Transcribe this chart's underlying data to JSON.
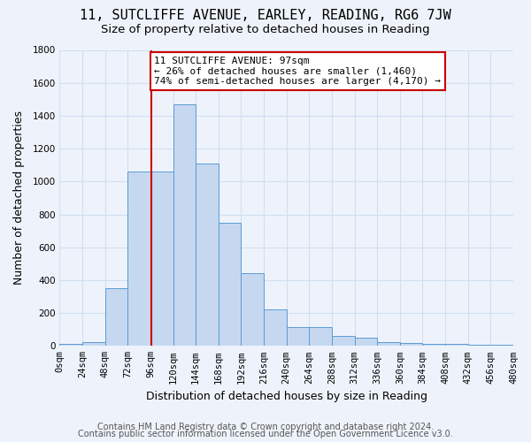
{
  "title1": "11, SUTCLIFFE AVENUE, EARLEY, READING, RG6 7JW",
  "title2": "Size of property relative to detached houses in Reading",
  "xlabel": "Distribution of detached houses by size in Reading",
  "ylabel": "Number of detached properties",
  "bins": [
    0,
    24,
    48,
    72,
    96,
    120,
    144,
    168,
    192,
    216,
    240,
    264,
    288,
    312,
    336,
    360,
    384,
    408,
    432,
    456,
    480
  ],
  "bar_heights": [
    10,
    25,
    350,
    1060,
    1060,
    1470,
    1110,
    750,
    440,
    220,
    115,
    115,
    60,
    50,
    25,
    20,
    15,
    10,
    5,
    5
  ],
  "bar_color": "#c5d8f0",
  "bar_edge_color": "#5b9bd5",
  "bg_color": "#eef3fb",
  "grid_color": "#d0dff0",
  "property_sqm": 97,
  "vline_color": "#cc0000",
  "annotation_text": "11 SUTCLIFFE AVENUE: 97sqm\n← 26% of detached houses are smaller (1,460)\n74% of semi-detached houses are larger (4,170) →",
  "annotation_box_color": "#ffffff",
  "annotation_box_edge": "#cc0000",
  "footer1": "Contains HM Land Registry data © Crown copyright and database right 2024.",
  "footer2": "Contains public sector information licensed under the Open Government Licence v3.0.",
  "ylim": [
    0,
    1800
  ],
  "title1_fontsize": 11,
  "title2_fontsize": 9.5,
  "xlabel_fontsize": 9,
  "ylabel_fontsize": 9,
  "tick_fontsize": 7.5,
  "annotation_fontsize": 8,
  "footer_fontsize": 7
}
